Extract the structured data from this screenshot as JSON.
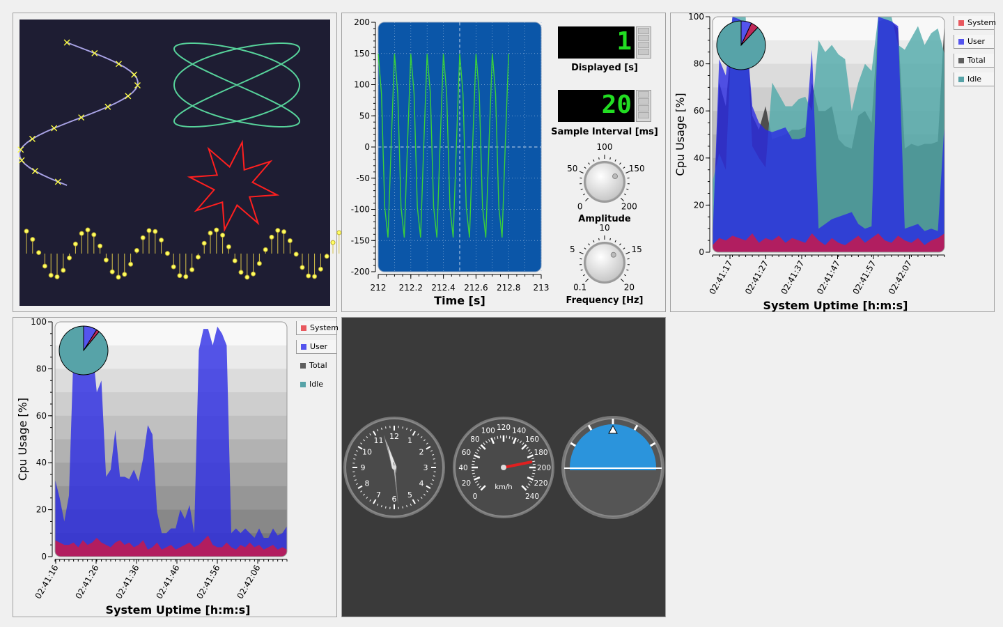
{
  "panels": {
    "curves": {
      "chart_data": {
        "type": "line",
        "series": [
          {
            "kind": "sine-with-cross-symbols",
            "color": "#a9a3e6"
          },
          {
            "kind": "lissajous",
            "color": "#57d39b"
          },
          {
            "kind": "star",
            "color": "#ff1f1f"
          },
          {
            "kind": "sine-sticks-with-circle-symbols",
            "color": "#d9c44a"
          }
        ]
      }
    },
    "oscilloscope": {
      "chart_data": {
        "type": "line",
        "xlabel": "Time [s]",
        "xlim": [
          212,
          213
        ],
        "ylim": [
          -200,
          200
        ],
        "x_ticks": [
          "212",
          "212.2",
          "212.4",
          "212.6",
          "212.8",
          "213"
        ],
        "y_ticks": [
          "200",
          "150",
          "100",
          "50",
          "0",
          "-50",
          "-100",
          "-150",
          "-200"
        ],
        "series": [
          {
            "color": "#3ad03a",
            "amplitude": 155,
            "frequency_hz": 10,
            "x_start": 212.0,
            "x_end": 212.8
          }
        ]
      },
      "displayed": {
        "label": "Displayed [s]",
        "value": "1"
      },
      "sample_interval": {
        "label": "Sample Interval [ms]",
        "value": "20"
      },
      "amplitude_knob": {
        "label": "Amplitude",
        "ticks": [
          "0",
          "50",
          "100",
          "150",
          "200"
        ]
      },
      "frequency_knob": {
        "label": "Frequency [Hz]",
        "ticks": [
          "0.1",
          "5",
          "10",
          "15",
          "20"
        ]
      }
    },
    "cpu_top": {
      "chart_data": {
        "type": "area",
        "ylabel": "Cpu Usage [%]",
        "xlabel": "System Uptime [h:m:s]",
        "ylim": [
          0,
          100
        ],
        "y_ticks": [
          "0",
          "20",
          "40",
          "60",
          "80",
          "100"
        ],
        "x_ticks": [
          "02:41:17",
          "02:41:27",
          "02:41:37",
          "02:41:47",
          "02:41:57",
          "02:42:07"
        ],
        "series": [
          {
            "name": "Total",
            "values": [
              6,
              72,
              62,
              96,
              98,
              97,
              58,
              52,
              62,
              48,
              49,
              50,
              52,
              52,
              53,
              72,
              60,
              60,
              62,
              48,
              45,
              44,
              58,
              60,
              55,
              98,
              99,
              98,
              95,
              44,
              46,
              45,
              46,
              46,
              47,
              98
            ]
          },
          {
            "name": "Idle",
            "values": [
              30,
              42,
              35,
              100,
              100,
              100,
              45,
              40,
              36,
              72,
              67,
              62,
              62,
              65,
              66,
              60,
              90,
              85,
              88,
              84,
              82,
              60,
              72,
              80,
              77,
              100,
              100,
              100,
              88,
              86,
              91,
              96,
              88,
              93,
              95,
              84
            ]
          },
          {
            "name": "User",
            "values": [
              5,
              82,
              75,
              100,
              99,
              97,
              62,
              55,
              52,
              51,
              52,
              53,
              48,
              48,
              49,
              86,
              10,
              12,
              14,
              15,
              16,
              17,
              12,
              10,
              11,
              100,
              99,
              98,
              96,
              10,
              11,
              12,
              9,
              10,
              9,
              55
            ]
          },
          {
            "name": "System",
            "values": [
              3,
              6,
              5,
              7,
              6,
              5,
              8,
              4,
              6,
              5,
              7,
              4,
              6,
              5,
              4,
              8,
              5,
              3,
              6,
              4,
              3,
              5,
              7,
              4,
              6,
              8,
              5,
              4,
              7,
              5,
              4,
              6,
              3,
              5,
              6,
              8
            ]
          }
        ],
        "legend": [
          {
            "name": "System",
            "color": "#e8585e",
            "checked": true
          },
          {
            "name": "User",
            "color": "#5454ee",
            "checked": true
          },
          {
            "name": "Total",
            "color": "#5e5e5e",
            "checked": true
          },
          {
            "name": "Idle",
            "color": "#57a3a8",
            "checked": true
          }
        ],
        "pie": [
          {
            "name": "User",
            "value": 7,
            "color": "#5454ee"
          },
          {
            "name": "System",
            "value": 5,
            "color": "#c0295a"
          },
          {
            "name": "Idle",
            "value": 88,
            "color": "#57a3a8"
          }
        ]
      }
    },
    "cpu_bottom": {
      "chart_data": {
        "type": "area",
        "ylabel": "Cpu Usage [%]",
        "xlabel": "System Uptime [h:m:s]",
        "ylim": [
          0,
          100
        ],
        "y_ticks": [
          "0",
          "20",
          "40",
          "60",
          "80",
          "100"
        ],
        "x_ticks": [
          "02:41:16",
          "02:41:26",
          "02:41:36",
          "02:41:46",
          "02:41:56",
          "02:42:06"
        ],
        "series": [
          {
            "name": "User",
            "values": [
              33,
              25,
              15,
              26,
              88,
              98,
              97,
              86,
              90,
              70,
              75,
              34,
              37,
              54,
              34,
              34,
              33,
              37,
              32,
              42,
              56,
              52,
              19,
              10,
              10,
              12,
              12,
              20,
              16,
              22,
              10,
              88,
              97,
              97,
              90,
              98,
              95,
              90,
              10,
              12,
              10,
              12,
              10,
              8,
              12,
              8,
              8,
              12,
              9,
              10,
              13
            ]
          },
          {
            "name": "System",
            "values": [
              7,
              6,
              5,
              5,
              6,
              4,
              7,
              5,
              6,
              8,
              6,
              5,
              4,
              6,
              7,
              5,
              6,
              4,
              5,
              7,
              3,
              4,
              6,
              3,
              4,
              5,
              3,
              4,
              5,
              6,
              4,
              5,
              7,
              9,
              5,
              4,
              4,
              6,
              4,
              3,
              5,
              4,
              6,
              4,
              5,
              3,
              4,
              5,
              3,
              4,
              3
            ]
          }
        ],
        "legend": [
          {
            "name": "System",
            "color": "#e8585e",
            "checked": true
          },
          {
            "name": "User",
            "color": "#5454ee",
            "checked": true
          },
          {
            "name": "Total",
            "color": "#5e5e5e",
            "checked": false
          },
          {
            "name": "Idle",
            "color": "#57a3a8",
            "checked": false
          }
        ],
        "pie": [
          {
            "name": "User",
            "value": 9,
            "color": "#5454ee"
          },
          {
            "name": "System",
            "value": 2,
            "color": "#c0295a"
          },
          {
            "name": "Idle",
            "value": 89,
            "color": "#57a3a8"
          }
        ]
      }
    },
    "dials": {
      "clock": {
        "numbers": [
          "12",
          "1",
          "2",
          "3",
          "4",
          "5",
          "6",
          "7",
          "8",
          "9",
          "10",
          "11"
        ],
        "hour": 11,
        "minute": 27,
        "second": 29
      },
      "speedometer": {
        "unit": "km/h",
        "labels": [
          "0",
          "20",
          "40",
          "60",
          "80",
          "100",
          "120",
          "140",
          "160",
          "180",
          "200",
          "220",
          "240"
        ],
        "value": 190
      },
      "attitude": {
        "roll_deg": 0,
        "pitch_offset": 0
      }
    }
  }
}
